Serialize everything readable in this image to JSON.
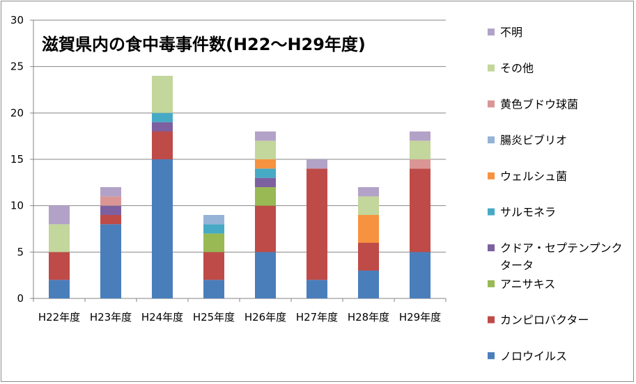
{
  "chart_data": {
    "type": "bar",
    "stacked": true,
    "title": "滋賀県内の食中毒事件数(H22～H29年度)",
    "categories": [
      "H22年度",
      "H23年度",
      "H24年度",
      "H25年度",
      "H26年度",
      "H27年度",
      "H28年度",
      "H29年度"
    ],
    "ylim": [
      0,
      30
    ],
    "yticks": [
      "0",
      "5",
      "10",
      "15",
      "20",
      "25",
      "30"
    ],
    "grid": true,
    "legend_position": "right",
    "series": [
      {
        "name": "ノロウイルス",
        "color": "#4a7ebb",
        "values": [
          2,
          8,
          15,
          2,
          5,
          2,
          3,
          5
        ]
      },
      {
        "name": "カンピロバクター",
        "color": "#be4b48",
        "values": [
          3,
          1,
          3,
          3,
          5,
          12,
          3,
          9
        ]
      },
      {
        "name": "アニサキス",
        "color": "#98b954",
        "values": [
          0,
          0,
          0,
          2,
          2,
          0,
          0,
          0
        ]
      },
      {
        "name": "クドア・セプテンプンクタータ",
        "color": "#7d60a0",
        "values": [
          0,
          1,
          1,
          0,
          1,
          0,
          0,
          0
        ]
      },
      {
        "name": "サルモネラ",
        "color": "#46aac5",
        "values": [
          0,
          0,
          1,
          1,
          1,
          0,
          0,
          0
        ]
      },
      {
        "name": "ウェルシュ菌",
        "color": "#f69240",
        "values": [
          0,
          0,
          0,
          0,
          1,
          0,
          3,
          0
        ]
      },
      {
        "name": "腸炎ビブリオ",
        "color": "#95b3d7",
        "values": [
          0,
          0,
          0,
          1,
          0,
          0,
          0,
          0
        ]
      },
      {
        "name": "黄色ブドウ球菌",
        "color": "#d99694",
        "values": [
          0,
          1,
          0,
          0,
          0,
          0,
          0,
          1
        ]
      },
      {
        "name": "その他",
        "color": "#c3d69b",
        "values": [
          3,
          0,
          4,
          0,
          2,
          0,
          2,
          2
        ]
      },
      {
        "name": "不明",
        "color": "#b3a2c7",
        "values": [
          2,
          1,
          0,
          0,
          1,
          1,
          1,
          1
        ]
      }
    ]
  }
}
